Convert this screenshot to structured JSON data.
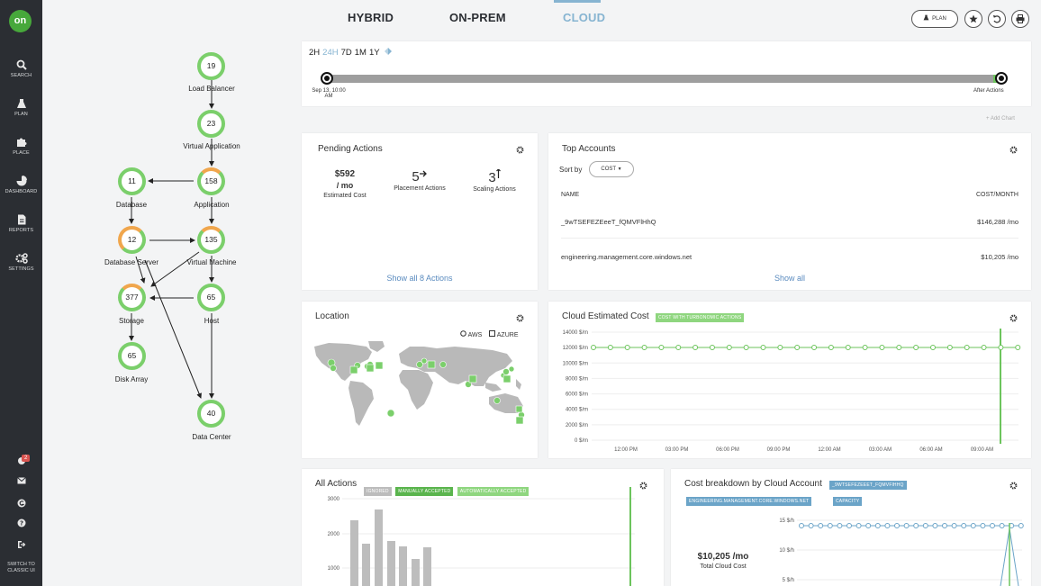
{
  "nav": {
    "logo": "on",
    "items": [
      {
        "label": "SEARCH"
      },
      {
        "label": "PLAN"
      },
      {
        "label": "PLACE"
      },
      {
        "label": "DASHBOARD"
      },
      {
        "label": "REPORTS"
      },
      {
        "label": "SETTINGS"
      }
    ],
    "notification_count": "2",
    "switch_label_line1": "SWITCH TO",
    "switch_label_line2": "CLASSIC UI"
  },
  "topology": {
    "nodes": [
      {
        "count": "19",
        "label": "Load Balancer"
      },
      {
        "count": "23",
        "label": "Virtual Application"
      },
      {
        "count": "158",
        "label": "Application"
      },
      {
        "count": "11",
        "label": "Database"
      },
      {
        "count": "12",
        "label": "Database Server"
      },
      {
        "count": "135",
        "label": "Virtual Machine"
      },
      {
        "count": "377",
        "label": "Storage"
      },
      {
        "count": "65",
        "label": "Host"
      },
      {
        "count": "65",
        "label": "Disk Array"
      },
      {
        "count": "40",
        "label": "Data Center"
      }
    ]
  },
  "header": {
    "tabs": [
      "HYBRID",
      "ON-PREM",
      "CLOUD"
    ],
    "active_tab": "CLOUD",
    "plan_label": "PLAN"
  },
  "timeline": {
    "ranges": [
      "2H",
      "24H",
      "7D",
      "1M",
      "1Y"
    ],
    "selected_range": "24H",
    "start_line1": "Sep 13, 10:00",
    "start_line2": "AM",
    "end_label": "After Actions",
    "add_chart": "+ Add Chart",
    "colors": {
      "track": "#9e9e9e",
      "end": "#6cc45c"
    }
  },
  "pending_actions": {
    "title": "Pending Actions",
    "cost_value": "$592",
    "cost_unit": "/ mo",
    "cost_label": "Estimated Cost",
    "placement_value": "5",
    "placement_label": "Placement Actions",
    "scaling_value": "3",
    "scaling_label": "Scaling Actions",
    "show_all": "Show all 8 Actions"
  },
  "top_accounts": {
    "title": "Top Accounts",
    "sort_label": "Sort by",
    "sort_value": "COST",
    "col_name": "NAME",
    "col_cost": "COST/MONTH",
    "rows": [
      {
        "name": "_9wTSEFEZEeeT_fQMVFlHhQ",
        "cost": "$146,288 /mo"
      },
      {
        "name": "engineering.management.core.windows.net",
        "cost": "$10,205 /mo"
      }
    ],
    "show_all": "Show all"
  },
  "location": {
    "title": "Location",
    "legend_aws": "AWS",
    "legend_azure": "AZURE"
  },
  "cloud_cost": {
    "title": "Cloud Estimated Cost",
    "tag": "COST WITH TURBONOMIC ACTIONS",
    "y_ticks": [
      "14000 $/m",
      "12000 $/m",
      "10000 $/m",
      "8000 $/m",
      "6000 $/m",
      "4000 $/m",
      "2000 $/m",
      "0 $/m"
    ],
    "x_ticks": [
      "12:00 PM",
      "03:00 PM",
      "06:00 PM",
      "09:00 PM",
      "12:00 AM",
      "03:00 AM",
      "06:00 AM",
      "09:00 AM"
    ]
  },
  "all_actions": {
    "title": "All Actions",
    "tags": [
      "IGNORED",
      "MANUALLY ACCEPTED",
      "AUTOMATICALLY ACCEPTED"
    ],
    "y_ticks": [
      "3000",
      "2000",
      "1000"
    ]
  },
  "cost_breakdown": {
    "title": "Cost breakdown by Cloud Account",
    "tags": [
      "_9WTSEFEZEEET_FQMVFlHHQ",
      "ENGINEERING.MANAGEMENT.CORE.WINDOWS.NET",
      "CAPACITY"
    ],
    "total_value": "$10,205 /mo",
    "total_label": "Total Cloud Cost",
    "y_ticks": [
      "15 $/h",
      "10 $/h",
      "5 $/h"
    ]
  }
}
